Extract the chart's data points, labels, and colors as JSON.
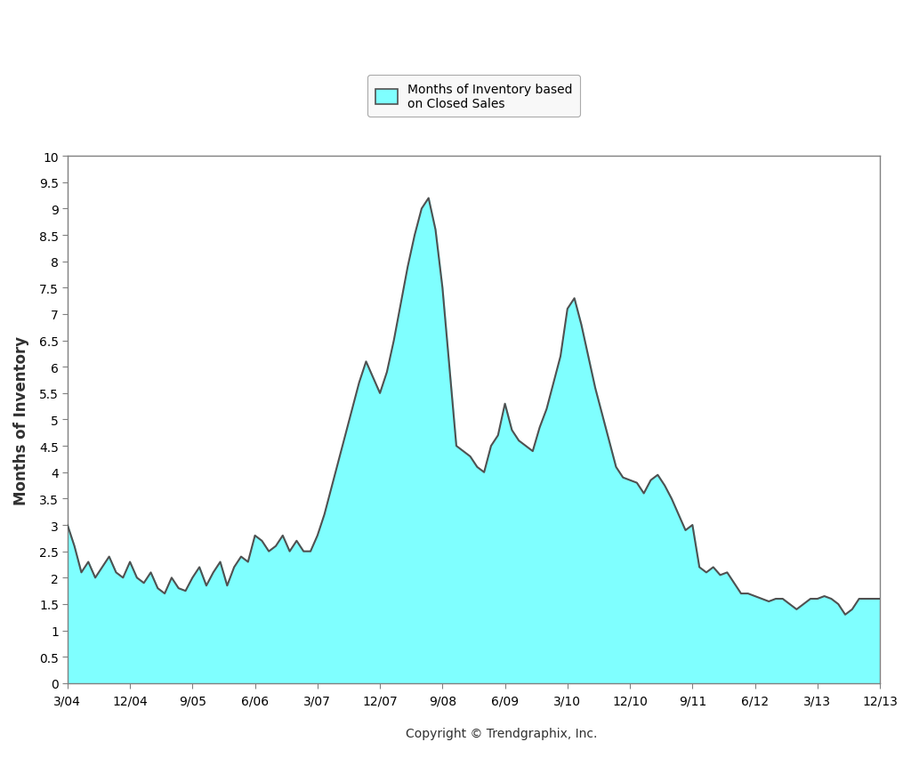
{
  "ylabel": "Months of Inventory",
  "copyright": "Copyright © Trendgraphix, Inc.",
  "legend_label": "Months of Inventory based\non Closed Sales",
  "fill_color": "#7FFFFF",
  "line_color": "#505050",
  "background_color": "#ffffff",
  "figure_facecolor": "#ffffff",
  "ylim": [
    0,
    10
  ],
  "yticks": [
    0,
    0.5,
    1.0,
    1.5,
    2.0,
    2.5,
    3.0,
    3.5,
    4.0,
    4.5,
    5.0,
    5.5,
    6.0,
    6.5,
    7.0,
    7.5,
    8.0,
    8.5,
    9.0,
    9.5,
    10.0
  ],
  "xtick_labels": [
    "3/04",
    "12/04",
    "9/05",
    "6/06",
    "3/07",
    "12/07",
    "9/08",
    "6/09",
    "3/10",
    "12/10",
    "9/11",
    "6/12",
    "3/13",
    "12/13"
  ],
  "xtick_positions": [
    0,
    9,
    18,
    27,
    36,
    45,
    54,
    63,
    72,
    81,
    90,
    99,
    108,
    117
  ],
  "x_values": [
    0,
    1,
    2,
    3,
    4,
    5,
    6,
    7,
    8,
    9,
    10,
    11,
    12,
    13,
    14,
    15,
    16,
    17,
    18,
    19,
    20,
    21,
    22,
    23,
    24,
    25,
    26,
    27,
    28,
    29,
    30,
    31,
    32,
    33,
    34,
    35,
    36,
    37,
    38,
    39,
    40,
    41,
    42,
    43,
    44,
    45,
    46,
    47,
    48,
    49,
    50,
    51,
    52,
    53,
    54,
    55,
    56,
    57,
    58,
    59,
    60,
    61,
    62,
    63,
    64,
    65,
    66,
    67,
    68,
    69,
    70,
    71,
    72,
    73,
    74,
    75,
    76,
    77,
    78,
    79,
    80,
    81,
    82,
    83,
    84,
    85,
    86,
    87,
    88,
    89,
    90,
    91,
    92,
    93,
    94,
    95,
    96,
    97,
    98,
    99,
    100,
    101,
    102,
    103,
    104,
    105,
    106,
    107,
    108,
    109,
    110,
    111,
    112,
    113,
    114,
    115,
    116,
    117
  ],
  "y_values": [
    3.0,
    2.6,
    2.1,
    2.3,
    2.0,
    2.2,
    2.4,
    2.1,
    2.0,
    2.3,
    2.0,
    1.9,
    2.1,
    1.8,
    1.7,
    2.0,
    1.8,
    1.75,
    2.0,
    2.2,
    1.85,
    2.1,
    2.3,
    1.85,
    2.2,
    2.4,
    2.3,
    2.8,
    2.7,
    2.5,
    2.6,
    2.8,
    2.5,
    2.7,
    2.5,
    2.5,
    2.8,
    3.2,
    3.7,
    4.2,
    4.7,
    5.2,
    5.7,
    6.1,
    5.8,
    5.5,
    5.9,
    6.5,
    7.2,
    7.9,
    8.5,
    9.0,
    9.2,
    8.6,
    7.5,
    6.0,
    4.5,
    4.4,
    4.3,
    4.1,
    4.0,
    4.5,
    4.7,
    5.3,
    4.8,
    4.6,
    4.5,
    4.4,
    4.85,
    5.2,
    5.7,
    6.2,
    7.1,
    7.3,
    6.8,
    6.2,
    5.6,
    5.1,
    4.6,
    4.1,
    3.9,
    3.85,
    3.8,
    3.6,
    3.85,
    3.95,
    3.75,
    3.5,
    3.2,
    2.9,
    3.0,
    2.2,
    2.1,
    2.2,
    2.05,
    2.1,
    1.9,
    1.7,
    1.7,
    1.65,
    1.6,
    1.55,
    1.6,
    1.6,
    1.5,
    1.4,
    1.5,
    1.6,
    1.6,
    1.65,
    1.6,
    1.5,
    1.3,
    1.4,
    1.6,
    1.6,
    1.6,
    1.6
  ]
}
